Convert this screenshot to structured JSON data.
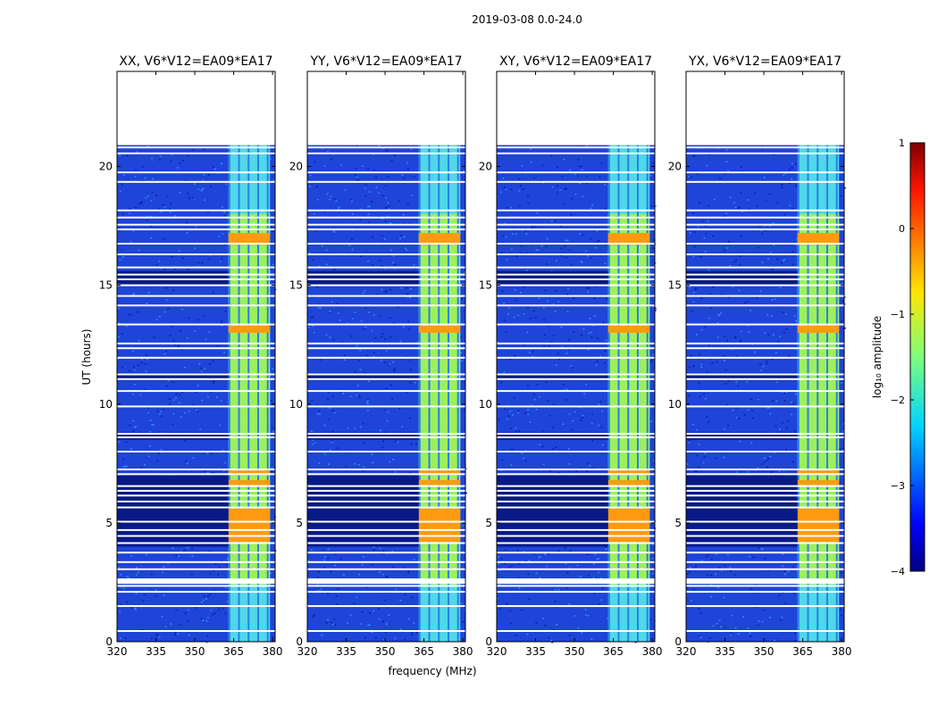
{
  "chart_data": {
    "type": "heatmap",
    "suptitle": "2019-03-08 0.0-24.0",
    "xlabel": "frequency (MHz)",
    "ylabel": "UT (hours)",
    "xlim": [
      320,
      381
    ],
    "ylim": [
      0,
      24
    ],
    "xticks": [
      320,
      335,
      350,
      365,
      380
    ],
    "yticks": [
      0,
      5,
      10,
      15,
      20
    ],
    "data_range_hours": [
      0,
      20.9
    ],
    "flagged_rows_hours": [
      0.45,
      1.5,
      2.1,
      2.35,
      2.55,
      3.05,
      3.35,
      3.75,
      4.15,
      4.45,
      4.7,
      5.05,
      5.65,
      5.9,
      6.15,
      6.35,
      6.55,
      7.05,
      7.25,
      8.0,
      8.6,
      8.75,
      9.9,
      10.55,
      11.05,
      11.25,
      11.95,
      12.35,
      12.55,
      13.35,
      14.15,
      14.55,
      15.0,
      15.25,
      15.45,
      15.75,
      16.3,
      16.75,
      17.35,
      17.55,
      17.85,
      18.15,
      19.35,
      19.75,
      20.55,
      20.8
    ],
    "rfi_freq_range_mhz": [
      362,
      381
    ],
    "panels": [
      {
        "title": "XX, V6*V12=EA09*EA17"
      },
      {
        "title": "YY, V6*V12=EA09*EA17"
      },
      {
        "title": "XY, V6*V12=EA09*EA17"
      },
      {
        "title": "YX, V6*V12=EA09*EA17"
      }
    ],
    "colorbar": {
      "label": "log₁₀ amplitude",
      "range": [
        -4,
        1
      ],
      "ticks": [
        1,
        0,
        -1,
        -2,
        -3,
        -4
      ],
      "colormap": "jet"
    }
  }
}
